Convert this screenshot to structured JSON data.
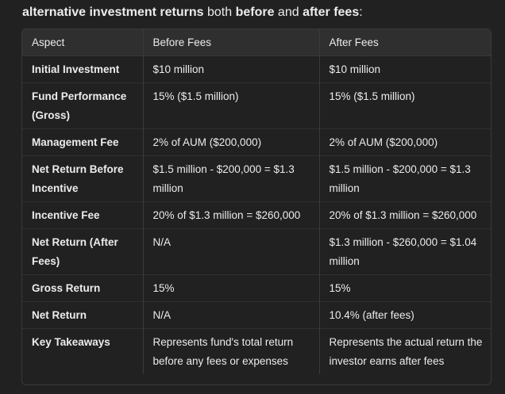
{
  "intro": {
    "pre": "alternative investment returns",
    "mid": " both ",
    "before": "before",
    "and": " and ",
    "after": "after fees",
    "end": ":"
  },
  "table": {
    "headers": [
      "Aspect",
      "Before Fees",
      "After Fees"
    ],
    "rows": [
      [
        "Initial Investment",
        "$10 million",
        "$10 million"
      ],
      [
        "Fund Performance (Gross)",
        "15% ($1.5 million)",
        "15% ($1.5 million)"
      ],
      [
        "Management Fee",
        "2% of AUM ($200,000)",
        "2% of AUM ($200,000)"
      ],
      [
        "Net Return Before Incentive",
        "$1.5 million - $200,000 = $1.3 million",
        "$1.5 million - $200,000 = $1.3 million"
      ],
      [
        "Incentive Fee",
        "20% of $1.3 million = $260,000",
        "20% of $1.3 million = $260,000"
      ],
      [
        "Net Return (After Fees)",
        "N/A",
        "$1.3 million - $260,000 = $1.04 million"
      ],
      [
        "Gross Return",
        "15%",
        "15%"
      ],
      [
        "Net Return",
        "N/A",
        "10.4% (after fees)"
      ],
      [
        "Key Takeaways",
        "Represents fund's total return before any fees or expenses",
        "Represents the actual return the investor earns after fees"
      ]
    ]
  }
}
